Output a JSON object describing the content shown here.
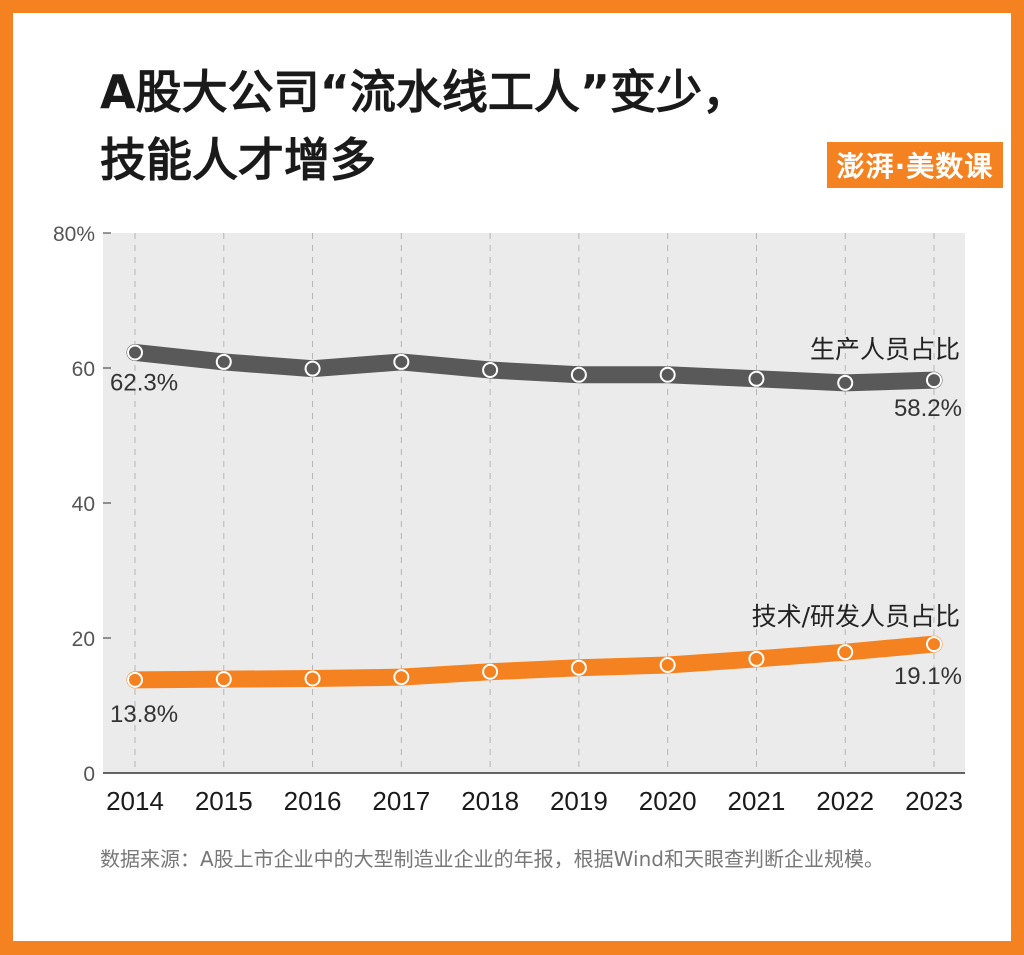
{
  "title_line1": "A股大公司“流水线工人”变少，",
  "title_line2": "技能人才增多",
  "logo_text": "澎湃·美数课",
  "source": "数据来源：A股上市企业中的大型制造业企业的年报，根据Wind和天眼查判断企业规模。",
  "colors": {
    "production": "#595959",
    "tech": "#f58220",
    "border": "#f58220",
    "plot_bg": "#ebebeb"
  },
  "chart_data": {
    "type": "line",
    "title": "A股大公司“流水线工人”变少，技能人才增多",
    "categories": [
      "2014",
      "2015",
      "2016",
      "2017",
      "2018",
      "2019",
      "2020",
      "2021",
      "2022",
      "2023"
    ],
    "ylim": [
      0,
      80
    ],
    "yticks": [
      {
        "v": 0,
        "label": "0"
      },
      {
        "v": 20,
        "label": "20"
      },
      {
        "v": 40,
        "label": "40"
      },
      {
        "v": 60,
        "label": "60"
      },
      {
        "v": 80,
        "label": "80%"
      }
    ],
    "grid": "vertical-dashed",
    "series": [
      {
        "name": "生产人员占比",
        "values": [
          62.3,
          60.9,
          59.9,
          60.9,
          59.7,
          59.0,
          59.0,
          58.4,
          57.8,
          58.2
        ],
        "first_label": "62.3%",
        "last_label": "58.2%"
      },
      {
        "name": "技术/研发人员占比",
        "values": [
          13.8,
          13.9,
          14.0,
          14.2,
          15.0,
          15.6,
          16.0,
          16.9,
          17.9,
          19.1
        ],
        "first_label": "13.8%",
        "last_label": "19.1%"
      }
    ]
  }
}
